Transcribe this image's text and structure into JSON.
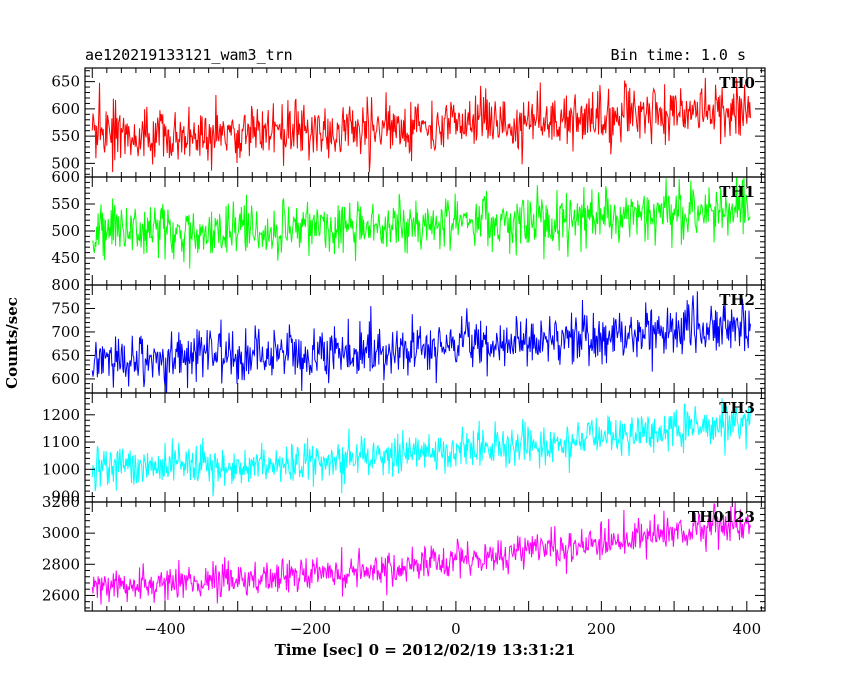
{
  "header": {
    "title": "ae120219133121_wam3_trn",
    "bin_time": "Bin time: 1.0 s"
  },
  "colors": {
    "TH0": "#ff0000",
    "TH1": "#00ff00",
    "TH2": "#0000ff",
    "TH3": "#00ffff",
    "TH0123": "#ff00ff"
  },
  "chart_data": {
    "type": "line",
    "title": "ae120219133121_wam3_trn",
    "xlabel": "Time [sec] 0 = 2012/02/19 13:31:21",
    "ylabel": "Counts/sec",
    "xlim": [
      -510,
      425
    ],
    "xticks": [
      -400,
      -200,
      0,
      200,
      400
    ],
    "x_start": -500,
    "x_end": 405,
    "x_step": 1,
    "grid": false,
    "panels": [
      {
        "name": "TH0",
        "ylim": [
          475,
          675
        ],
        "yticks": [
          500,
          550,
          600,
          650
        ],
        "trend_start": 550,
        "trend_end": 600,
        "noise_sd": 25
      },
      {
        "name": "TH1",
        "ylim": [
          400,
          600
        ],
        "yticks": [
          450,
          500,
          550,
          600
        ],
        "trend_start": 495,
        "trend_end": 540,
        "noise_sd": 25
      },
      {
        "name": "TH2",
        "ylim": [
          570,
          800
        ],
        "yticks": [
          600,
          650,
          700,
          750,
          800
        ],
        "trend_start": 640,
        "trend_end": 720,
        "noise_sd": 28
      },
      {
        "name": "TH3",
        "ylim": [
          880,
          1280
        ],
        "yticks": [
          900,
          1000,
          1100,
          1200
        ],
        "trend_start": 1000,
        "trend_end": 1180,
        "noise_sd": 40
      },
      {
        "name": "TH0123",
        "ylim": [
          2500,
          3200
        ],
        "yticks": [
          2600,
          2800,
          3000,
          3200
        ],
        "trend_start": 2660,
        "trend_end": 3080,
        "noise_sd": 55
      }
    ]
  }
}
